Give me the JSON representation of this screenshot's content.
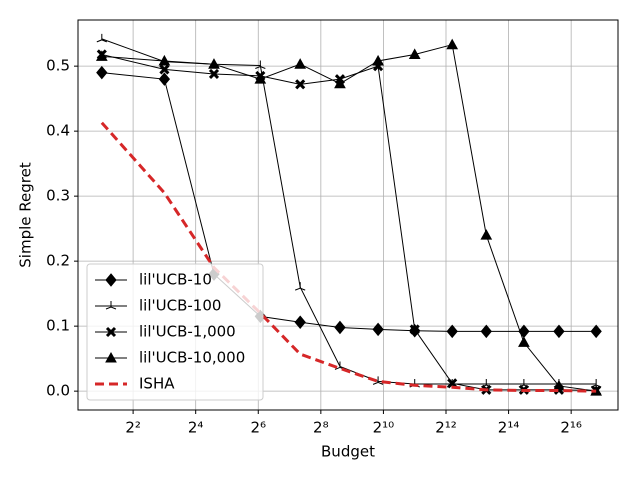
{
  "chart_data": {
    "type": "line",
    "x_label": "Budget",
    "y_label": "Simple Regret",
    "x": [
      2,
      8,
      24,
      67,
      162,
      391,
      910,
      2048,
      4700,
      10000,
      23000,
      50000,
      114000
    ],
    "xscale": "log2",
    "xlim": [
      1.18,
      185000
    ],
    "xticks": [
      {
        "value": 4,
        "label": "2²"
      },
      {
        "value": 16,
        "label": "2⁴"
      },
      {
        "value": 64,
        "label": "2⁶"
      },
      {
        "value": 256,
        "label": "2⁸"
      },
      {
        "value": 1024,
        "label": "2¹⁰"
      },
      {
        "value": 4096,
        "label": "2¹²"
      },
      {
        "value": 16384,
        "label": "2¹⁴"
      },
      {
        "value": 65536,
        "label": "2¹⁶"
      }
    ],
    "ylim": [
      -0.029,
      0.571
    ],
    "yticks": [
      {
        "value": 0,
        "label": "0.0"
      },
      0.1,
      0.2,
      0.3,
      0.4,
      0.5
    ],
    "grid": true,
    "legend": "lower left",
    "series": [
      {
        "name": "lil'UCB-10",
        "color": "#000000",
        "marker": "diamond",
        "values": [
          0.49,
          0.48,
          0.18,
          0.115,
          0.106,
          0.098,
          0.095,
          0.093,
          0.092,
          0.092,
          0.092,
          0.092,
          0.092
        ]
      },
      {
        "name": "lil'UCB-100",
        "color": "#000000",
        "marker": "star",
        "values": [
          0.542,
          0.507,
          0.503,
          0.501,
          0.16,
          0.038,
          0.015,
          0.011,
          0.011,
          0.011,
          0.011,
          0.011,
          0.011
        ]
      },
      {
        "name": "lil'UCB-1,000",
        "color": "#000000",
        "marker": "x",
        "values": [
          0.518,
          0.495,
          0.488,
          0.485,
          0.472,
          0.48,
          0.5,
          0.095,
          0.012,
          0.002,
          0.002,
          0.002,
          0.001
        ]
      },
      {
        "name": "lil'UCB-10,000",
        "color": "#000000",
        "marker": "triangle",
        "values": [
          0.515,
          0.508,
          0.503,
          0.48,
          0.503,
          0.473,
          0.508,
          0.518,
          0.533,
          0.24,
          0.075,
          0.008,
          0.0
        ]
      },
      {
        "name": "ISHA",
        "color": "#d62728",
        "marker": "none",
        "dashed": true,
        "values": [
          0.413,
          0.305,
          0.19,
          0.12,
          0.057,
          0.035,
          0.015,
          0.009,
          0.006,
          0.002,
          0.001,
          0.001,
          0.0
        ]
      }
    ]
  }
}
